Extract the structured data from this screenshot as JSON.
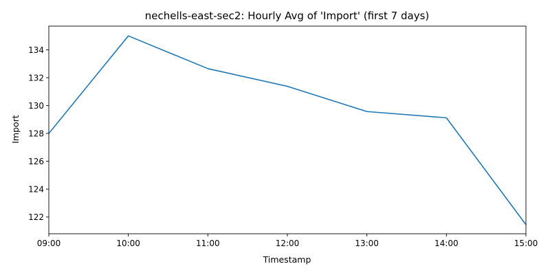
{
  "chart_data": {
    "type": "line",
    "title": "nechells-east-sec2: Hourly Avg of 'Import' (first 7 days)",
    "xlabel": "Timestamp",
    "ylabel": "Import",
    "x": [
      "09:00",
      "10:00",
      "11:00",
      "12:00",
      "13:00",
      "14:00",
      "15:00"
    ],
    "series": [
      {
        "values": [
          128.0,
          135.0,
          132.65,
          131.38,
          129.57,
          129.12,
          121.45
        ]
      }
    ],
    "ylim": [
      120.8,
      135.7
    ],
    "yticks": [
      122,
      124,
      126,
      128,
      130,
      132,
      134
    ],
    "grid": false,
    "legend": "none",
    "line_color": "#1f77b4"
  }
}
